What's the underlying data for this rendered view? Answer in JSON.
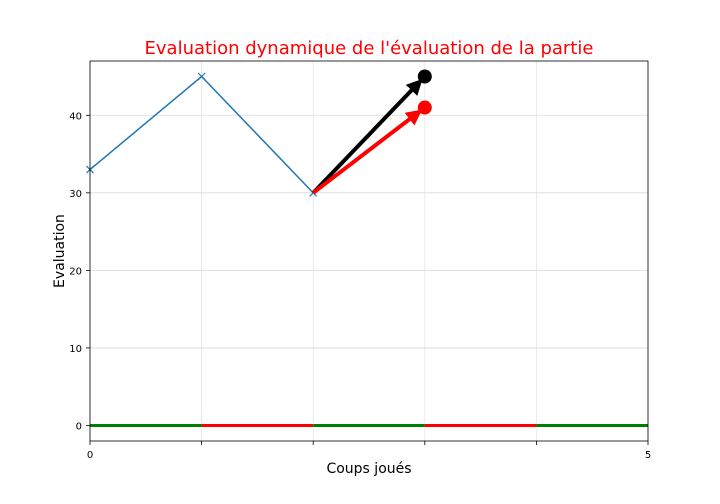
{
  "chart_data": {
    "type": "line",
    "title": "Evaluation dynamique de l'évaluation de la partie",
    "title_color": "#ff0000",
    "xlabel": "Coups joués",
    "ylabel": "Evaluation",
    "xlim": [
      0,
      5
    ],
    "ylim": [
      -2,
      47
    ],
    "x_ticks": [
      0,
      1,
      2,
      3,
      4,
      5
    ],
    "x_tick_labels": [
      "0",
      "",
      "",
      "",
      "",
      "5"
    ],
    "y_ticks": [
      0,
      10,
      20,
      30,
      40
    ],
    "y_tick_labels": [
      "0",
      "10",
      "20",
      "30",
      "40"
    ],
    "grid": true,
    "series": [
      {
        "name": "evaluation",
        "color": "#1f77b4",
        "marker": "x",
        "x": [
          0,
          1,
          2
        ],
        "y": [
          33,
          45,
          30
        ]
      }
    ],
    "arrows": [
      {
        "name": "black-arrow",
        "color": "#000000",
        "from": [
          2,
          30
        ],
        "to": [
          3,
          45
        ]
      },
      {
        "name": "red-arrow",
        "color": "#ff0000",
        "from": [
          2,
          30
        ],
        "to": [
          3,
          41
        ]
      }
    ],
    "baseline_segments": [
      {
        "x0": 0,
        "x1": 1,
        "y": 0,
        "color": "#008000"
      },
      {
        "x0": 1,
        "x1": 2,
        "y": 0,
        "color": "#ff0000"
      },
      {
        "x0": 2,
        "x1": 3,
        "y": 0,
        "color": "#008000"
      },
      {
        "x0": 3,
        "x1": 4,
        "y": 0,
        "color": "#ff0000"
      },
      {
        "x0": 4,
        "x1": 5,
        "y": 0,
        "color": "#008000"
      }
    ]
  }
}
